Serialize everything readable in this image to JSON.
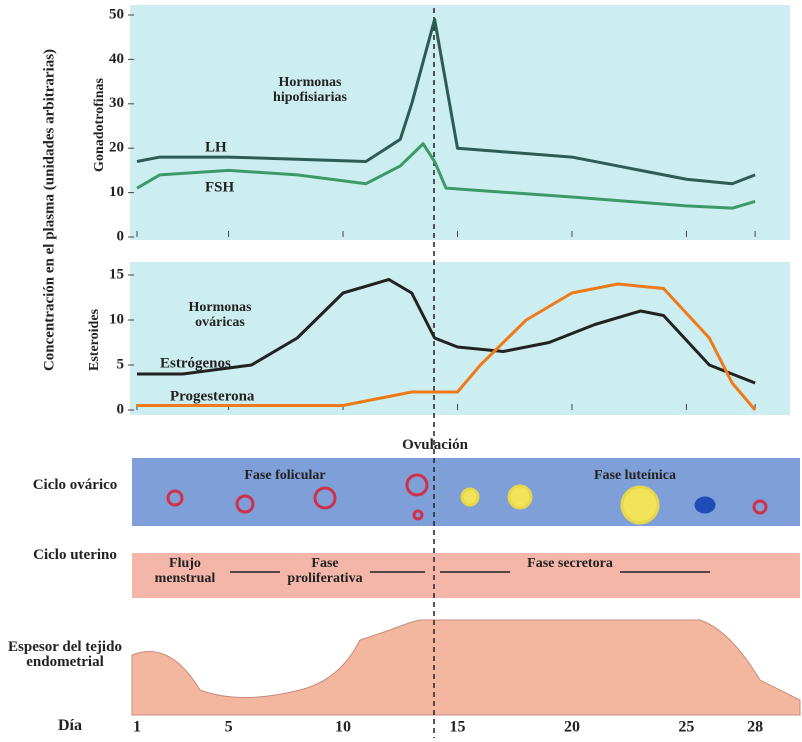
{
  "y_axis_label": "Concentración en el plasma (unidades arbitrarias)",
  "chart_data": [
    {
      "type": "line",
      "y_label": "Gonadotrofinas",
      "annotation": "Hormonas hipofisiarias",
      "xlim": [
        1,
        29
      ],
      "ylim": [
        0,
        50
      ],
      "yticks": [
        0,
        10,
        20,
        30,
        40,
        50
      ],
      "series": [
        {
          "name": "LH",
          "color": "#2f5a55",
          "x": [
            1,
            2,
            5,
            8,
            11,
            12.5,
            13,
            14,
            15,
            20,
            25,
            27,
            28
          ],
          "values": [
            17,
            18,
            18,
            17.5,
            17,
            22,
            30,
            49,
            20,
            18,
            13,
            12,
            14
          ]
        },
        {
          "name": "FSH",
          "color": "#3c9a66",
          "x": [
            1,
            2,
            5,
            8,
            11,
            12.5,
            13.5,
            14,
            14.5,
            20,
            25,
            27,
            28
          ],
          "values": [
            11,
            14,
            15,
            14,
            12,
            16,
            21,
            17,
            11,
            9,
            7,
            6.5,
            8
          ]
        }
      ]
    },
    {
      "type": "line",
      "y_label": "Esteroides",
      "annotation": "Hormonas ováricas",
      "xlim": [
        1,
        29
      ],
      "ylim": [
        0,
        15
      ],
      "yticks": [
        0,
        5,
        10,
        15
      ],
      "series": [
        {
          "name": "Estrógenos",
          "color": "#222222",
          "x": [
            1,
            3,
            6,
            8,
            10,
            12,
            13,
            14,
            15,
            17,
            19,
            21,
            23,
            24,
            26,
            28
          ],
          "values": [
            4,
            4,
            5,
            8,
            13,
            14.5,
            13,
            8,
            7,
            6.5,
            7.5,
            9.5,
            11,
            10.5,
            5,
            3
          ]
        },
        {
          "name": "Progesterona",
          "color": "#f07a1a",
          "x": [
            1,
            10,
            13,
            14,
            15,
            16,
            18,
            20,
            22,
            24,
            26,
            27,
            28
          ],
          "values": [
            0.5,
            0.5,
            2,
            2,
            2,
            5,
            10,
            13,
            14,
            13.5,
            8,
            3,
            0
          ]
        }
      ]
    }
  ],
  "ovulation": "Ovulación",
  "ovarian_cycle": {
    "label": "Ciclo ovárico",
    "phases": [
      "Fase folicular",
      "Fase luteínica"
    ]
  },
  "uterine_cycle": {
    "label": "Ciclo uterino",
    "phases": [
      "Flujo menstrual",
      "Fase proliferativa",
      "Fase secretora"
    ]
  },
  "endometrium": {
    "label": "Espesor del tejido endometrial"
  },
  "day_axis": {
    "label": "Día",
    "ticks": [
      1,
      5,
      10,
      15,
      20,
      25,
      28
    ]
  }
}
